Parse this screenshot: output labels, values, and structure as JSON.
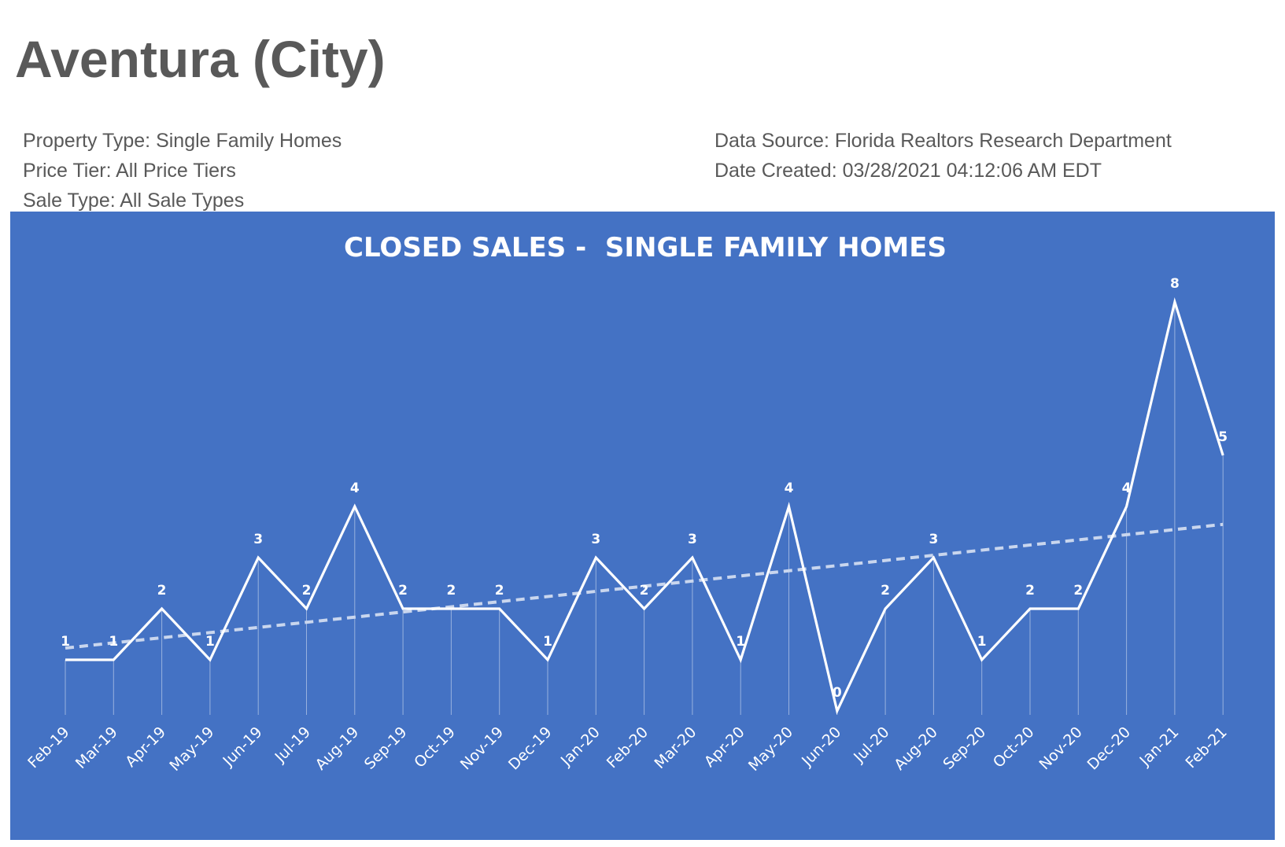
{
  "header": {
    "title": "Aventura (City)",
    "property_type": "Property Type: Single Family Homes",
    "price_tier": "Price Tier: All Price Tiers",
    "sale_type": "Sale Type: All Sale Types",
    "data_source": "Data Source: Florida Realtors Research Department",
    "date_created": "Date Created: 03/28/2021 04:12:06 AM EDT"
  },
  "colors": {
    "panel_background": "#4472c4",
    "series_line": "#ffffff",
    "trendline": "#c9d6ee",
    "text_dark": "#595959"
  },
  "chart_data": {
    "type": "line",
    "title": "CLOSED SALES -  SINGLE FAMILY HOMES",
    "categories": [
      "Feb-19",
      "Mar-19",
      "Apr-19",
      "May-19",
      "Jun-19",
      "Jul-19",
      "Aug-19",
      "Sep-19",
      "Oct-19",
      "Nov-19",
      "Dec-19",
      "Jan-20",
      "Feb-20",
      "Mar-20",
      "Apr-20",
      "May-20",
      "Jun-20",
      "Jul-20",
      "Aug-20",
      "Sep-20",
      "Oct-20",
      "Nov-20",
      "Dec-20",
      "Jan-21",
      "Feb-21"
    ],
    "series": [
      {
        "values": [
          1,
          1,
          2,
          1,
          3,
          2,
          4,
          2,
          2,
          2,
          1,
          3,
          2,
          3,
          1,
          4,
          0,
          2,
          3,
          1,
          2,
          2,
          4,
          8,
          5
        ],
        "data_labels": true,
        "drop_lines": true
      }
    ],
    "trendline": {
      "type": "linear",
      "style": "dashed"
    },
    "y_axis_visible": false,
    "ylim": [
      0,
      8
    ],
    "grid": false,
    "legend": "none"
  }
}
